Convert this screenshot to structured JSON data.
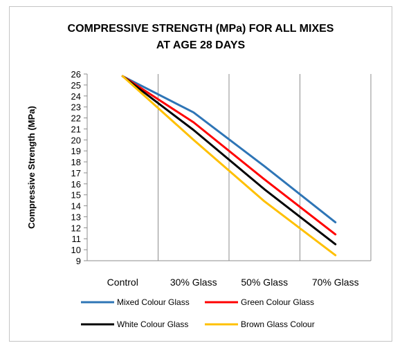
{
  "chart_data": {
    "type": "line",
    "title_lines": [
      "COMPRESSIVE STRENGTH (MPa) FOR ALL MIXES",
      "AT AGE 28 DAYS"
    ],
    "ylabel": "Compressive Strength (MPa)",
    "xlabel": "",
    "categories": [
      "Control",
      "30% Glass",
      "50% Glass",
      "70% Glass"
    ],
    "ylim": [
      9,
      26
    ],
    "yticks": [
      9,
      10,
      11,
      12,
      13,
      14,
      15,
      16,
      17,
      18,
      19,
      20,
      21,
      22,
      23,
      24,
      25,
      26
    ],
    "grid": "vertical",
    "legend_position": "bottom",
    "series": [
      {
        "name": "Mixed Colour Glass",
        "color": "#2e75b6",
        "values": [
          25.8,
          22.5,
          17.6,
          12.5
        ]
      },
      {
        "name": "Green Colour Glass",
        "color": "#ff0000",
        "values": [
          25.8,
          21.6,
          16.4,
          11.4
        ]
      },
      {
        "name": "White Colour Glass",
        "color": "#000000",
        "values": [
          25.8,
          20.9,
          15.5,
          10.5
        ]
      },
      {
        "name": "Brown Glass Colour",
        "color": "#ffc000",
        "values": [
          25.8,
          20.0,
          14.4,
          9.5
        ]
      }
    ]
  }
}
